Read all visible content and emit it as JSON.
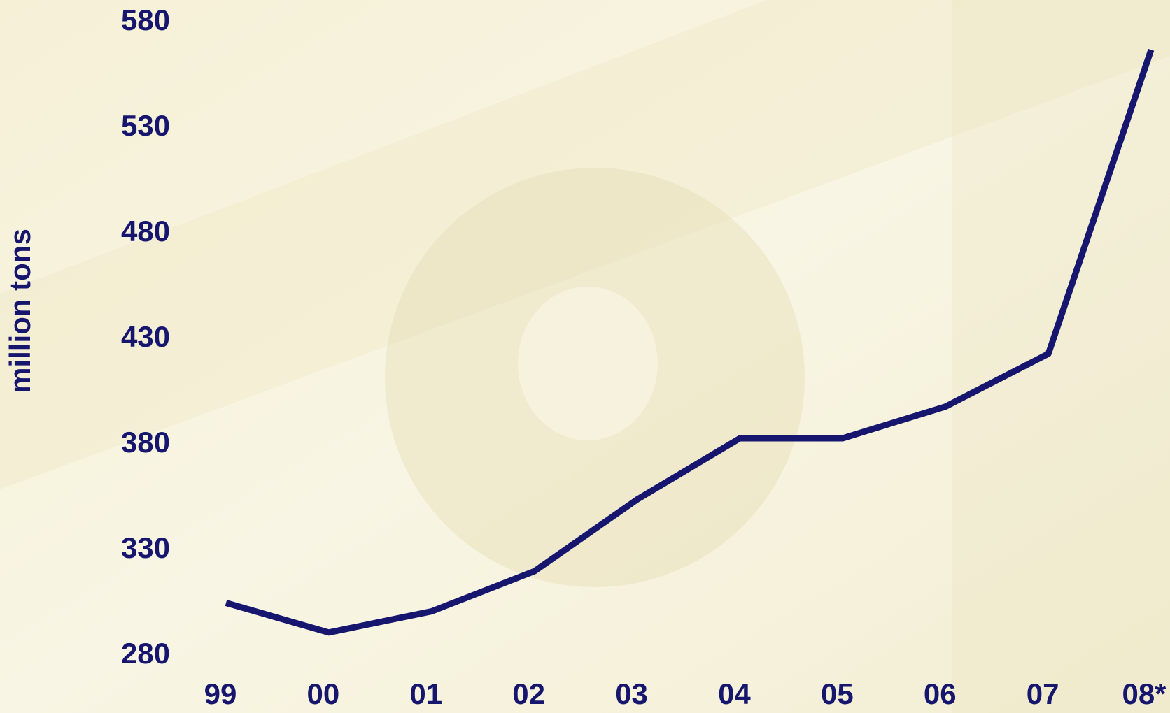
{
  "chart_data": {
    "type": "line",
    "y_label": "million tons",
    "categories": [
      "99",
      "00",
      "01",
      "02",
      "03",
      "04",
      "05",
      "06",
      "07",
      "08*"
    ],
    "values": [
      305,
      291,
      301,
      320,
      354,
      383,
      383,
      398,
      423,
      567
    ],
    "color": "#16166f",
    "ylim": [
      280,
      580
    ],
    "yticks": [
      280,
      330,
      380,
      430,
      480,
      530,
      580
    ],
    "grid": false
  }
}
